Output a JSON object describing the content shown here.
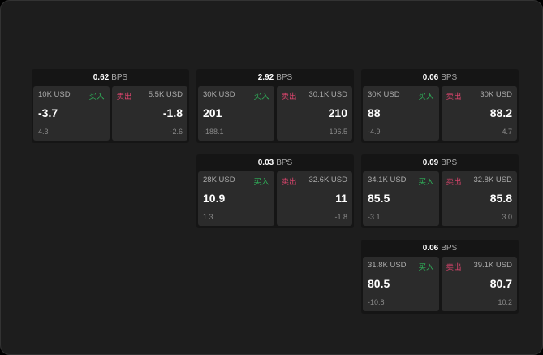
{
  "labels": {
    "buy": "买入",
    "sell": "卖出",
    "unit": "BPS"
  },
  "colors": {
    "buy": "#2fb35a",
    "sell": "#e0456f",
    "background": "#1d1d1d"
  },
  "cards": [
    {
      "spread": "0.62",
      "bid": {
        "size": "10K USD",
        "price": "-3.7",
        "change": "4.3"
      },
      "ask": {
        "size": "5.5K USD",
        "price": "-1.8",
        "change": "-2.6"
      }
    },
    {
      "spread": "2.92",
      "bid": {
        "size": "30K USD",
        "price": "201",
        "change": "-188.1"
      },
      "ask": {
        "size": "30.1K USD",
        "price": "210",
        "change": "196.5"
      }
    },
    {
      "spread": "0.06",
      "bid": {
        "size": "30K USD",
        "price": "88",
        "change": "-4.9"
      },
      "ask": {
        "size": "30K USD",
        "price": "88.2",
        "change": "4.7"
      }
    },
    {
      "spread": "0.03",
      "bid": {
        "size": "28K USD",
        "price": "10.9",
        "change": "1.3"
      },
      "ask": {
        "size": "32.6K USD",
        "price": "11",
        "change": "-1.8"
      }
    },
    {
      "spread": "0.09",
      "bid": {
        "size": "34.1K USD",
        "price": "85.5",
        "change": "-3.1"
      },
      "ask": {
        "size": "32.8K USD",
        "price": "85.8",
        "change": "3.0"
      }
    },
    {
      "spread": "0.06",
      "bid": {
        "size": "31.8K USD",
        "price": "80.5",
        "change": "-10.8"
      },
      "ask": {
        "size": "39.1K USD",
        "price": "80.7",
        "change": "10.2"
      }
    }
  ]
}
